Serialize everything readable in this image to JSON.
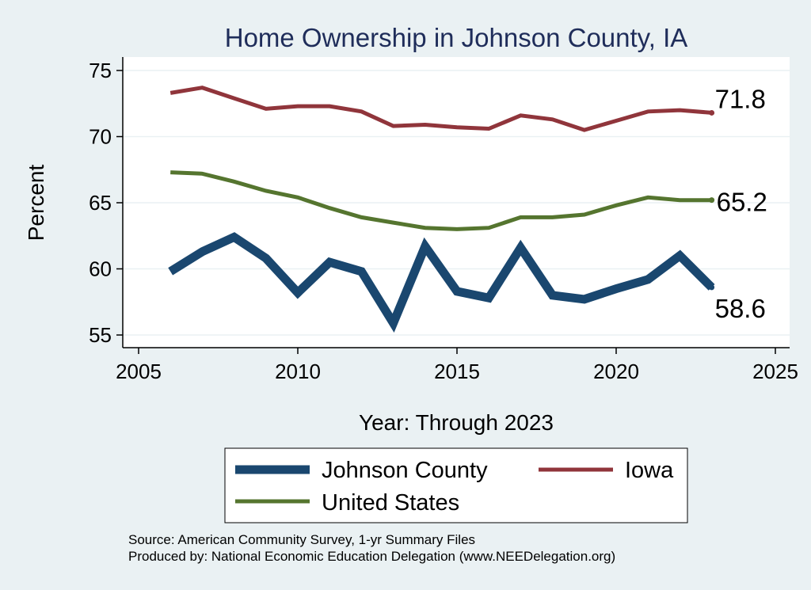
{
  "chart_data": {
    "type": "line",
    "title": "Home Ownership in Johnson County, IA",
    "xlabel": "Year: Through 2023",
    "ylabel": "Percent",
    "xlim": [
      2005,
      2025
    ],
    "ylim": [
      54,
      76
    ],
    "xticks": [
      2005,
      2010,
      2015,
      2020,
      2025
    ],
    "yticks": [
      55,
      60,
      65,
      70,
      75
    ],
    "grid": true,
    "legend_position": "bottom",
    "x": [
      2006,
      2007,
      2008,
      2009,
      2010,
      2011,
      2012,
      2013,
      2014,
      2015,
      2016,
      2017,
      2018,
      2019,
      2020,
      2021,
      2022,
      2023
    ],
    "series": [
      {
        "name": "Johnson County",
        "color": "#1a476f",
        "values": [
          59.8,
          61.3,
          62.4,
          60.8,
          58.2,
          60.5,
          59.8,
          55.9,
          61.7,
          58.3,
          57.8,
          61.6,
          58.0,
          57.7,
          58.5,
          59.2,
          61.0,
          58.6
        ],
        "end_label": "58.6"
      },
      {
        "name": "Iowa",
        "color": "#90353b",
        "values": [
          73.3,
          73.7,
          72.9,
          72.1,
          72.3,
          72.3,
          71.9,
          70.8,
          70.9,
          70.7,
          70.6,
          71.6,
          71.3,
          70.5,
          71.2,
          71.9,
          72.0,
          71.8
        ],
        "end_label": "71.8"
      },
      {
        "name": "United States",
        "color": "#55752f",
        "values": [
          67.3,
          67.2,
          66.6,
          65.9,
          65.4,
          64.6,
          63.9,
          63.5,
          63.1,
          63.0,
          63.1,
          63.9,
          63.9,
          64.1,
          64.8,
          65.4,
          65.2,
          65.2
        ],
        "end_label": "65.2"
      }
    ],
    "notes": [
      "Source: American Community Survey, 1-yr Summary Files",
      "Produced by: National Economic Education Delegation (www.NEEDelegation.org)"
    ]
  }
}
